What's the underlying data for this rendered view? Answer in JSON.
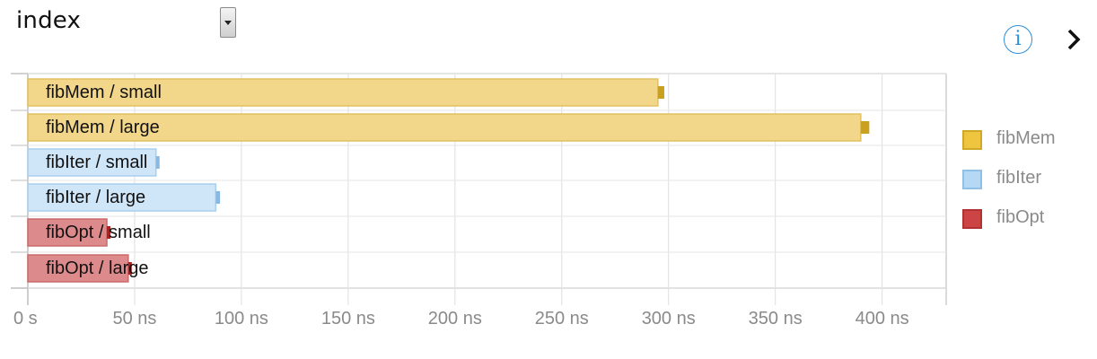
{
  "header": {
    "title": "index",
    "dropdown_icon": "dropdown-arrow",
    "info_icon": "info-circle",
    "info_glyph": "i",
    "next_icon": "chevron-right"
  },
  "chart_data": {
    "type": "bar",
    "orientation": "horizontal",
    "title": "",
    "xlabel": "",
    "ylabel": "",
    "xlim": [
      0,
      430
    ],
    "x_unit": "ns",
    "x_ticks": [
      {
        "value": 0,
        "label": "0 s"
      },
      {
        "value": 50,
        "label": "50 ns"
      },
      {
        "value": 100,
        "label": "100 ns"
      },
      {
        "value": 150,
        "label": "150 ns"
      },
      {
        "value": 200,
        "label": "200 ns"
      },
      {
        "value": 250,
        "label": "250 ns"
      },
      {
        "value": 300,
        "label": "300 ns"
      },
      {
        "value": 350,
        "label": "350 ns"
      },
      {
        "value": 400,
        "label": "400 ns"
      }
    ],
    "grid": true,
    "legend_position": "right",
    "bars": [
      {
        "label": "fibMem / small",
        "series": "fibMem",
        "value": 295,
        "ci": [
          295,
          298
        ]
      },
      {
        "label": "fibMem / large",
        "series": "fibMem",
        "value": 390,
        "ci": [
          390,
          394
        ]
      },
      {
        "label": "fibIter / small",
        "series": "fibIter",
        "value": 60,
        "ci": [
          60,
          61
        ]
      },
      {
        "label": "fibIter / large",
        "series": "fibIter",
        "value": 88,
        "ci": [
          88,
          90
        ]
      },
      {
        "label": "fibOpt / small",
        "series": "fibOpt",
        "value": 37,
        "ci": [
          37,
          38.5
        ]
      },
      {
        "label": "fibOpt / large",
        "series": "fibOpt",
        "value": 47,
        "ci": [
          47,
          48
        ]
      }
    ],
    "series": [
      {
        "name": "fibMem",
        "fill": "#f2d68a",
        "stroke": "#e2c060",
        "ci_color": "#c9a020",
        "legend_fill": "#efc53f",
        "legend_stroke": "#cfa82a"
      },
      {
        "name": "fibIter",
        "fill": "#cfe5f8",
        "stroke": "#a9cfee",
        "ci_color": "#8ab8e0",
        "legend_fill": "#b5d8f5",
        "legend_stroke": "#8ec0ea"
      },
      {
        "name": "fibOpt",
        "fill": "#dd8a8c",
        "stroke": "#cc6a6c",
        "ci_color": "#b02020",
        "legend_fill": "#cc4444",
        "legend_stroke": "#b03333"
      }
    ]
  }
}
